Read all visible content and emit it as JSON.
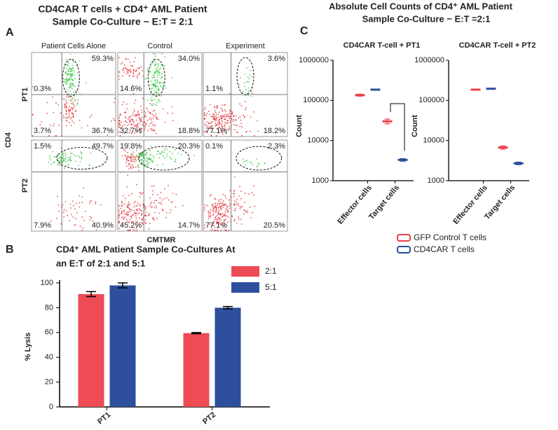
{
  "panel_a": {
    "label": "A",
    "title": [
      "CD4CAR T cells + CD4⁺ AML Patient",
      "Sample  Co-Culture ~ E:T = 2:1"
    ],
    "columns": [
      "Patient Cells Alone",
      "Control",
      "Experiment"
    ],
    "rows": [
      "PT1",
      "PT2"
    ],
    "y_label": "CD4",
    "x_label": "CMTMR",
    "quadrants": [
      [
        [
          "0.3%",
          "59.3%",
          "3.7%",
          "36.7%"
        ],
        [
          "14.6%",
          "34.0%",
          "32.7%",
          "18.8%"
        ],
        [
          "1.1%",
          "3.6%",
          "77.1%",
          "18.2%"
        ]
      ],
      [
        [
          "1.5%",
          "49.7%",
          "7.9%",
          "40.9%"
        ],
        [
          "19.8%",
          "20.3%",
          "45.2%",
          "14.7%"
        ],
        [
          "0.1%",
          "2.3%",
          "77.1%",
          "20.5%"
        ]
      ]
    ]
  },
  "chart_data": [
    {
      "type": "bar",
      "label": "B",
      "title": [
        "CD4⁺ AML Patient Sample Co-Cultures  At",
        "an E:T of 2:1 and 5:1"
      ],
      "y_label": "% Lysis",
      "categories": [
        "PT1",
        "PT2"
      ],
      "series": [
        {
          "name": "2:1",
          "color": "#ee4b55",
          "values": [
            91,
            59.5
          ],
          "errors": [
            2,
            0.5
          ]
        },
        {
          "name": "5:1",
          "color": "#2d4f9e",
          "values": [
            98,
            80
          ],
          "errors": [
            2,
            1
          ]
        }
      ],
      "ylim": [
        0,
        100
      ],
      "yticks": [
        0,
        20,
        40,
        60,
        80,
        100
      ],
      "legend": "upper right"
    },
    {
      "type": "dot",
      "label": "C",
      "title": [
        "Absolute Cell Counts of CD4⁺ AML Patient",
        "Sample  Co-Culture ~ E:T =2:1"
      ],
      "y_label": "Count",
      "log_y": true,
      "ylim": [
        1000,
        1000000
      ],
      "yticks": [
        1000,
        10000,
        100000,
        1000000
      ],
      "categories": [
        "Effector cells",
        "Target cells"
      ],
      "legend_items": [
        {
          "name": "GFP Control T cells",
          "color": "#e8424d"
        },
        {
          "name": "CD4CAR T cells",
          "color": "#2b4e9c"
        }
      ],
      "panels": [
        {
          "title": "CD4CAR T-cell + PT1",
          "series": [
            {
              "values": [
                135000,
                30000
              ],
              "errors": [
                8000,
                4000
              ]
            },
            {
              "values": [
                185000,
                3300
              ],
              "errors": [
                5000,
                250
              ]
            }
          ]
        },
        {
          "title": "CD4CAR T-cell + PT2",
          "series": [
            {
              "values": [
                185000,
                6700
              ],
              "errors": [
                6000,
                600
              ]
            },
            {
              "values": [
                195000,
                2700
              ],
              "errors": [
                5000,
                200
              ]
            }
          ]
        }
      ]
    }
  ]
}
